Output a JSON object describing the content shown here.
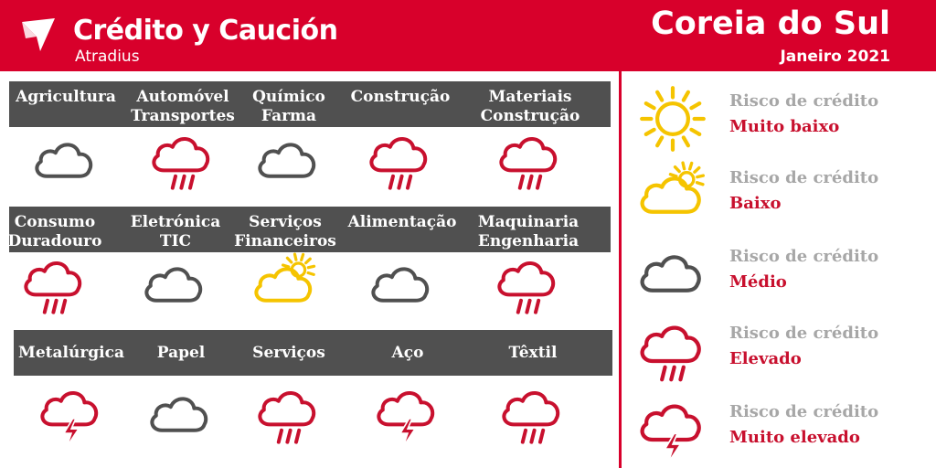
{
  "header": {
    "brand": "Crédito y Caución",
    "sub_brand": "Atradius",
    "country": "Coreia do Sul",
    "date": "Janeiro 2021"
  },
  "colors": {
    "brand_red": "#d8002b",
    "bar_gray": "#505050",
    "sun_yellow": "#f5c400",
    "cloud_gray": "#505050",
    "risk_red": "#c8102e"
  },
  "sectors": [
    {
      "lines": [
        "Agricultura"
      ],
      "risk": "Médio",
      "icon": "cloud-icon"
    },
    {
      "lines": [
        "Automóvel",
        "Transportes"
      ],
      "risk": "Elevado",
      "icon": "rain-cloud-icon"
    },
    {
      "lines": [
        "Químico",
        "Farma"
      ],
      "risk": "Médio",
      "icon": "cloud-icon"
    },
    {
      "lines": [
        "Construção"
      ],
      "risk": "Elevado",
      "icon": "rain-cloud-icon"
    },
    {
      "lines": [
        "Materiais",
        "Construção"
      ],
      "risk": "Elevado",
      "icon": "rain-cloud-icon"
    },
    {
      "lines": [
        "Consumo",
        "Duradouro"
      ],
      "risk": "Elevado",
      "icon": "rain-cloud-icon"
    },
    {
      "lines": [
        "Eletrónica",
        "TIC"
      ],
      "risk": "Médio",
      "icon": "cloud-icon"
    },
    {
      "lines": [
        "Serviços",
        "Financeiros"
      ],
      "risk": "Baixo",
      "icon": "sun-cloud-icon"
    },
    {
      "lines": [
        "Alimentação"
      ],
      "risk": "Médio",
      "icon": "cloud-icon"
    },
    {
      "lines": [
        "Maquinaria",
        "Engenharia"
      ],
      "risk": "Elevado",
      "icon": "rain-cloud-icon"
    },
    {
      "lines": [
        "Metalúrgica"
      ],
      "risk": "Muito elevado",
      "icon": "storm-cloud-icon"
    },
    {
      "lines": [
        "Papel"
      ],
      "risk": "Médio",
      "icon": "cloud-icon"
    },
    {
      "lines": [
        "Serviços"
      ],
      "risk": "Elevado",
      "icon": "rain-cloud-icon"
    },
    {
      "lines": [
        "Aço"
      ],
      "risk": "Muito elevado",
      "icon": "storm-cloud-icon"
    },
    {
      "lines": [
        "Têxtil"
      ],
      "risk": "Elevado",
      "icon": "rain-cloud-icon"
    }
  ],
  "legend": [
    {
      "title": "Risco de crédito",
      "value": "Muito baixo",
      "icon": "sun-icon"
    },
    {
      "title": "Risco de crédito",
      "value": "Baixo",
      "icon": "sun-cloud-icon"
    },
    {
      "title": "Risco de crédito",
      "value": "Médio",
      "icon": "cloud-icon"
    },
    {
      "title": "Risco de crédito",
      "value": "Elevado",
      "icon": "rain-cloud-icon"
    },
    {
      "title": "Risco de crédito",
      "value": "Muito elevado",
      "icon": "storm-cloud-icon"
    }
  ]
}
